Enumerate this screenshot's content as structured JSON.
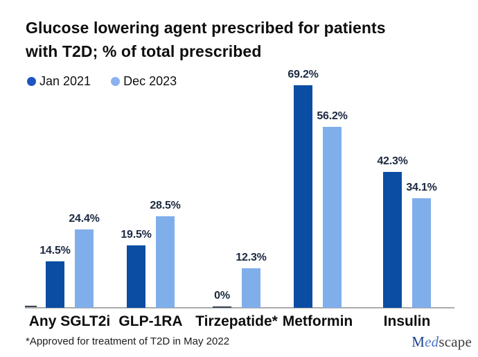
{
  "title": {
    "line1": "Glucose lowering agent prescribed for patients",
    "line2": "with T2D; % of total prescribed"
  },
  "legend": [
    {
      "label": "Jan 2021",
      "color": "#1d55c0"
    },
    {
      "label": "Dec 2023",
      "color": "#8ab2f0"
    }
  ],
  "footnote": "*Approved for treatment of T2D in May 2022",
  "logo": {
    "med_m": "M",
    "med_ed": "ed",
    "med_scape": "scape"
  },
  "colors": {
    "bar_jan_2021": "#0b4da2",
    "bar_dec_2023": "#80aeea",
    "zero_bar": "#3b4654",
    "axis_line": "#ababab",
    "value_label": "#1b2940",
    "background": "#ffffff"
  },
  "chart_data": {
    "type": "bar",
    "title": "Glucose lowering agent prescribed for patients with T2D; % of total prescribed",
    "categories": [
      "Any SGLT2i",
      "GLP-1RA",
      "Tirzepatide*",
      "Metformin",
      "Insulin"
    ],
    "series": [
      {
        "name": "Jan 2021",
        "color": "#0b4da2",
        "values": [
          14.5,
          19.5,
          0,
          69.2,
          42.3
        ],
        "labels": [
          "14.5%",
          "19.5%",
          "0%",
          "69.2%",
          "42.3%"
        ]
      },
      {
        "name": "Dec 2023",
        "color": "#80aeea",
        "values": [
          24.4,
          28.5,
          12.3,
          56.2,
          34.1
        ],
        "labels": [
          "24.4%",
          "28.5%",
          "12.3%",
          "56.2%",
          "34.1%"
        ]
      }
    ],
    "xlabel": "",
    "ylabel": "% of total prescribed",
    "ylim": [
      0,
      75
    ],
    "grid": false,
    "legend_position": "top-left",
    "annotations": [
      "*Approved for treatment of T2D in May 2022"
    ]
  }
}
